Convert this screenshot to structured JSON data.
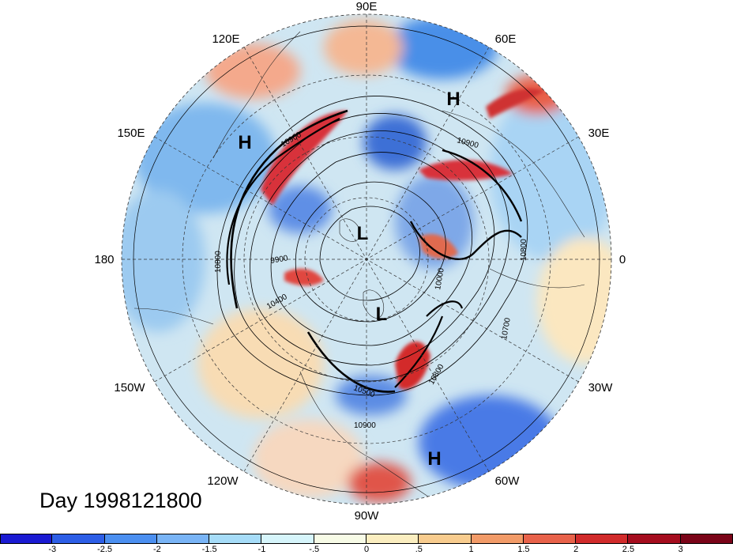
{
  "map": {
    "longitude_labels": [
      "90E",
      "60E",
      "30E",
      "0",
      "30W",
      "60W",
      "90W",
      "120W",
      "150W",
      "180",
      "150E",
      "120E"
    ],
    "pressure_centers": [
      "H",
      "H",
      "H",
      "L",
      "L"
    ],
    "contour_labels": [
      "10900",
      "10900",
      "10900",
      "10800",
      "10800",
      "10800",
      "10700",
      "10500",
      "10400",
      "10000",
      "9900"
    ]
  },
  "date_label": "Day 1998121800",
  "colorbar": {
    "ticks": [
      "-3",
      "-2.5",
      "-2",
      "-1.5",
      "-1",
      "-.5",
      "0",
      ".5",
      "1",
      "1.5",
      "2",
      "2.5",
      "3"
    ],
    "colors": [
      "#1a1ad2",
      "#2d5ee6",
      "#4b8ff0",
      "#79b4f6",
      "#a6dcf8",
      "#d6f5fb",
      "#f7fbe6",
      "#fbeec0",
      "#f8cc8e",
      "#f29b68",
      "#e8624a",
      "#d12b2b",
      "#a50d1e",
      "#7a0418"
    ]
  }
}
